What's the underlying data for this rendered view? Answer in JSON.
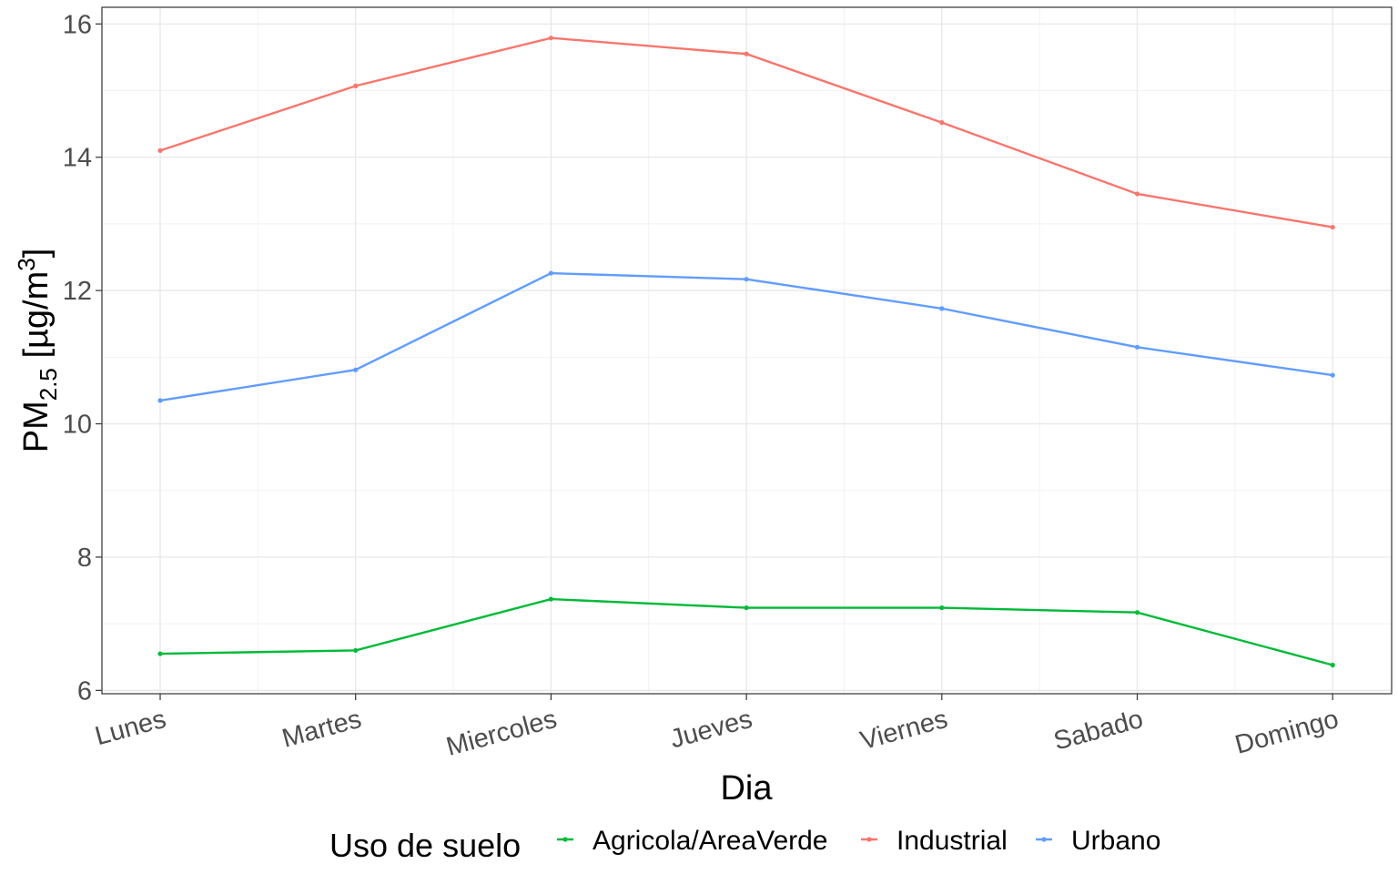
{
  "chart_data": {
    "type": "line",
    "categories": [
      "Lunes",
      "Martes",
      "Miercoles",
      "Jueves",
      "Viernes",
      "Sabado",
      "Domingo"
    ],
    "series": [
      {
        "name": "Industrial",
        "color": "#F8766D",
        "values": [
          14.1,
          15.07,
          15.79,
          15.55,
          14.52,
          13.45,
          12.95
        ]
      },
      {
        "name": "Urbano",
        "color": "#619CFF",
        "values": [
          10.35,
          10.81,
          12.26,
          12.17,
          11.73,
          11.15,
          10.73
        ]
      },
      {
        "name": "Agricola/AreaVerde",
        "color": "#00BA38",
        "values": [
          6.55,
          6.6,
          7.37,
          7.24,
          7.24,
          7.17,
          6.38
        ]
      }
    ],
    "xlabel": "Dia",
    "ylabel": {
      "main": "PM",
      "subscript": "2.5",
      "unit_open": " [µg/m",
      "superscript": "3",
      "unit_close": "]"
    },
    "yticks": [
      "6",
      "8",
      "10",
      "12",
      "14",
      "16"
    ],
    "ylim": [
      5.95,
      16.25
    ],
    "grid": true,
    "legend": {
      "position": "bottom",
      "title": "Uso de suelo",
      "entries": [
        "Agricola/AreaVerde",
        "Industrial",
        "Urbano"
      ]
    }
  }
}
